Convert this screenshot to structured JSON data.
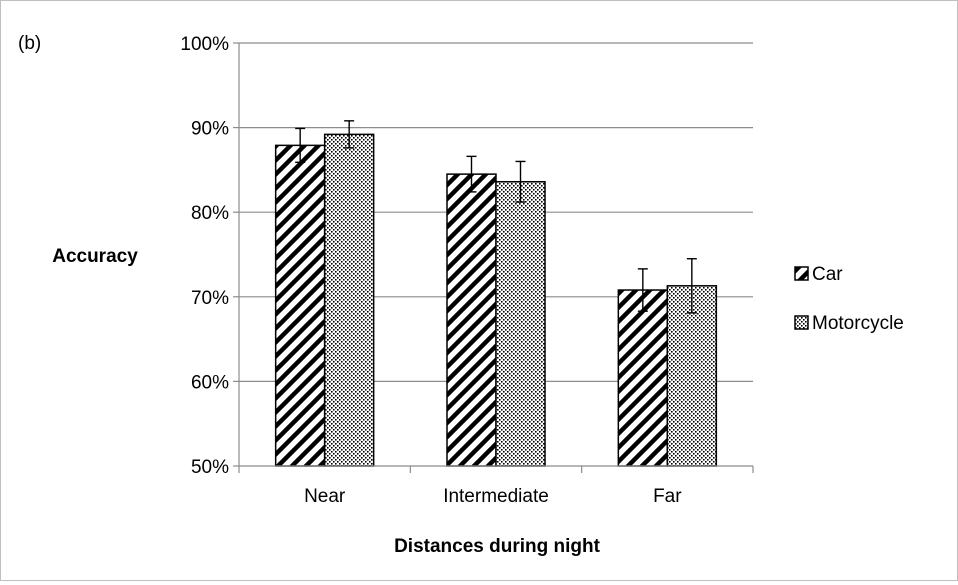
{
  "panel_label": "(b)",
  "colors": {
    "grid": "#8c8c8c",
    "axis": "#8c8c8c",
    "bar_stroke": "#000000",
    "frame": "#bfbfbf"
  },
  "chart_data": {
    "type": "bar",
    "title": "",
    "xlabel": "Distances during night",
    "ylabel": "Accuracy",
    "categories": [
      "Near",
      "Intermediate",
      "Far"
    ],
    "ylim": [
      0.5,
      1.0
    ],
    "yticks": [
      0.5,
      0.6,
      0.7,
      0.8,
      0.9,
      1.0
    ],
    "ytick_labels": [
      "50%",
      "60%",
      "70%",
      "80%",
      "90%",
      "100%"
    ],
    "grid": true,
    "legend_position": "right",
    "series": [
      {
        "name": "Car",
        "pattern": "diagonal-stripes",
        "values": [
          0.879,
          0.845,
          0.708
        ],
        "errors": [
          0.02,
          0.021,
          0.025
        ]
      },
      {
        "name": "Motorcycle",
        "pattern": "dots",
        "values": [
          0.892,
          0.836,
          0.713
        ],
        "errors": [
          0.016,
          0.024,
          0.032
        ]
      }
    ]
  }
}
